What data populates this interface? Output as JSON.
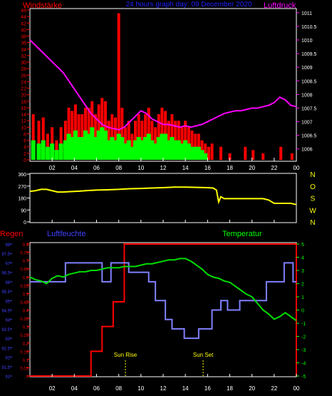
{
  "header": {
    "left_label": "Windstärke",
    "center_label": "24 hours graph day: 09 December 2020",
    "right_label": "Luftdruck"
  },
  "colors": {
    "frame": "#ffffff",
    "wind_avg": "#00ff00",
    "wind_gust": "#ff0000",
    "pressure": "#ff00ff",
    "direction": "#ffff00",
    "humidity": "#8080ff",
    "temperature": "#00dd00",
    "rain": "#ff0000",
    "label_yellow": "#ffff00",
    "axis_red": "#ff0000",
    "axis_blue": "#4040ff",
    "axis_green": "#00ff00",
    "axis_magenta": "#ff00ff",
    "axis_white": "#ffffff",
    "center_blue": "#2020ff"
  },
  "x_ticks": [
    "02",
    "04",
    "06",
    "08",
    "10",
    "12",
    "14",
    "16",
    "18",
    "20",
    "22",
    "00"
  ],
  "x_tick_hours": [
    2,
    4,
    6,
    8,
    10,
    12,
    14,
    16,
    18,
    20,
    22,
    24
  ],
  "chart_data": [
    {
      "type": "bar",
      "title": "Windstärke / Luftdruck",
      "xlabel": "",
      "x_range": [
        0,
        24
      ],
      "left_axis": {
        "label": "Windstärke",
        "ticks": [
          "0",
          "2",
          "4",
          "6",
          "8",
          "10",
          "12",
          "14",
          "16",
          "18",
          "20",
          "22",
          "24",
          "26",
          "28",
          "30",
          "32",
          "34",
          "36",
          "38",
          "40",
          "42",
          "44",
          "46"
        ],
        "ylim": [
          0,
          46
        ]
      },
      "right_axis": {
        "label": "Luftdruck",
        "ticks": [
          "1006",
          "1006.5",
          "1007",
          "1007.5",
          "1008",
          "1008.5",
          "1009",
          "1009.5",
          "1010",
          "1010.5",
          "1011"
        ],
        "ylim": [
          1005.6,
          1011.1
        ]
      },
      "series": [
        {
          "name": "Windstärke Böen",
          "style": "bars",
          "x": [
            0.3,
            0.8,
            1.2,
            1.6,
            2.0,
            2.4,
            2.8,
            3.2,
            3.5,
            3.8,
            4.1,
            4.4,
            4.7,
            5.0,
            5.3,
            5.6,
            5.9,
            6.2,
            6.5,
            6.8,
            7.1,
            7.4,
            7.7,
            8.0,
            8.3,
            8.6,
            8.9,
            9.2,
            9.5,
            9.8,
            10.1,
            10.4,
            10.7,
            11.0,
            11.3,
            11.6,
            11.9,
            12.2,
            12.5,
            12.8,
            13.1,
            13.4,
            13.7,
            14.0,
            14.3,
            14.6,
            14.9,
            15.2,
            15.5,
            15.8,
            16.1,
            16.4,
            17.2,
            18.0,
            19.4,
            20.1,
            21.0,
            22.6,
            23.6
          ],
          "values": [
            14,
            12,
            13,
            8,
            10,
            6,
            10,
            12,
            16,
            15,
            17,
            14,
            14,
            16,
            16,
            18,
            14,
            17,
            19,
            18,
            12,
            14,
            13,
            45,
            16,
            10,
            12,
            8,
            12,
            14,
            12,
            14,
            16,
            12,
            10,
            14,
            16,
            15,
            12,
            14,
            12,
            12,
            10,
            12,
            10,
            9,
            8,
            8,
            6,
            5,
            4,
            5,
            4,
            2,
            4,
            3,
            2,
            4,
            2
          ]
        },
        {
          "name": "Windstärke Mittel",
          "style": "bars",
          "x": [
            0.3,
            0.8,
            1.2,
            1.6,
            2.0,
            2.4,
            2.8,
            3.2,
            3.5,
            3.8,
            4.1,
            4.4,
            4.7,
            5.0,
            5.3,
            5.6,
            5.9,
            6.2,
            6.5,
            6.8,
            7.1,
            7.4,
            7.7,
            8.0,
            8.3,
            8.6,
            8.9,
            9.2,
            9.5,
            9.8,
            10.1,
            10.4,
            10.7,
            11.0,
            11.3,
            11.6,
            11.9,
            12.2,
            12.5,
            12.8,
            13.1,
            13.4,
            13.7,
            14.0,
            14.3,
            14.6,
            14.9,
            15.2,
            15.5,
            15.8
          ],
          "values": [
            6,
            5,
            6,
            4,
            5,
            3,
            5,
            6,
            8,
            7,
            9,
            7,
            7,
            9,
            8,
            10,
            7,
            9,
            10,
            9,
            6,
            7,
            6,
            8,
            7,
            5,
            6,
            4,
            6,
            7,
            6,
            7,
            8,
            6,
            5,
            7,
            8,
            8,
            6,
            7,
            6,
            6,
            5,
            6,
            5,
            4,
            4,
            4,
            3,
            2
          ]
        },
        {
          "name": "Luftdruck",
          "style": "line",
          "axis": "right",
          "x": [
            0,
            0.5,
            1,
            1.5,
            2,
            2.5,
            3,
            3.5,
            4,
            4.5,
            5,
            5.5,
            6,
            6.5,
            7,
            7.5,
            8,
            8.5,
            9,
            9.5,
            10,
            10.5,
            11,
            11.5,
            12,
            12.5,
            13,
            13.5,
            14,
            14.5,
            15,
            15.5,
            16,
            16.5,
            17,
            17.5,
            18,
            18.5,
            19,
            19.5,
            20,
            20.5,
            21,
            21.5,
            22,
            22.5,
            23,
            23.5,
            24
          ],
          "values": [
            1010,
            1009.8,
            1009.6,
            1009.4,
            1009.2,
            1009.0,
            1008.8,
            1008.5,
            1008.2,
            1007.9,
            1007.6,
            1007.3,
            1007.1,
            1006.9,
            1006.8,
            1006.75,
            1006.7,
            1006.8,
            1007.0,
            1007.2,
            1007.4,
            1007.3,
            1007.1,
            1007.0,
            1006.9,
            1006.9,
            1006.85,
            1006.8,
            1006.85,
            1006.8,
            1006.85,
            1006.9,
            1007.0,
            1007.1,
            1007.2,
            1007.3,
            1007.35,
            1007.4,
            1007.4,
            1007.45,
            1007.5,
            1007.5,
            1007.55,
            1007.6,
            1007.7,
            1007.9,
            1007.8,
            1007.6,
            1007.55
          ]
        }
      ]
    },
    {
      "type": "line",
      "title": "Windrichtung",
      "x_range": [
        0,
        24
      ],
      "left_axis": {
        "ticks": [
          "0",
          "90",
          "180",
          "270",
          "360"
        ],
        "ylim": [
          0,
          360
        ]
      },
      "right_axis": {
        "ticks": [
          "N",
          "W",
          "S",
          "O",
          "N"
        ]
      },
      "series": [
        {
          "name": "Windrichtung",
          "x": [
            0,
            0.5,
            1,
            1.5,
            2,
            2.5,
            3,
            3.5,
            4,
            4.5,
            5,
            6,
            7,
            8,
            9,
            10,
            11,
            12,
            13,
            14,
            15,
            16,
            16.5,
            16.8,
            17,
            17.2,
            17.5,
            18,
            19,
            20,
            20.5,
            21,
            21.5,
            22,
            22.5,
            23,
            23.5,
            24
          ],
          "values": [
            230,
            235,
            245,
            245,
            235,
            225,
            225,
            228,
            230,
            232,
            235,
            240,
            242,
            245,
            250,
            252,
            255,
            258,
            262,
            262,
            260,
            258,
            255,
            240,
            150,
            190,
            175,
            175,
            175,
            175,
            175,
            175,
            165,
            140,
            140,
            140,
            140,
            130
          ]
        }
      ]
    },
    {
      "type": "line",
      "title": "Regen / Luftfeuchte / Temperatur",
      "x_range": [
        0,
        24
      ],
      "left_axis_1": {
        "label": "Regen",
        "ticks": [
          "0",
          "0.05",
          "0.1",
          "0.15",
          "0.2",
          "0.25",
          "0.3",
          "0.35",
          "0.4",
          "0.45",
          "0.5",
          "0.55",
          "0.6",
          "0.65",
          "0.7",
          "0.75",
          "0.8"
        ],
        "ylim": [
          0,
          0.8
        ]
      },
      "left_axis_2": {
        "label": "Luftfeuchte",
        "ticks": [
          "91",
          "91.5",
          "92",
          "92.5",
          "93",
          "93.5",
          "94",
          "94.5",
          "95",
          "95.5",
          "96",
          "96.5",
          "97",
          "97.5",
          "98"
        ],
        "ylim": [
          91,
          98
        ]
      },
      "right_axis": {
        "label": "Temperatur",
        "ticks": [
          "-5",
          "-4",
          "-3",
          "-2",
          "-1",
          "0",
          "1",
          "2",
          "3",
          "4",
          "5"
        ],
        "ylim": [
          -5,
          5
        ]
      },
      "annotations": [
        {
          "label": "Sun Rise",
          "x": 8.6
        },
        {
          "label": "Sun Set",
          "x": 15.6
        }
      ],
      "series": [
        {
          "name": "Regen",
          "style": "step",
          "x": [
            0,
            5.5,
            5.5,
            6.5,
            6.5,
            7.5,
            7.5,
            8.5,
            8.5,
            24,
            24
          ],
          "values": [
            0,
            0,
            0.15,
            0.15,
            0.3,
            0.3,
            0.45,
            0.45,
            0.8,
            0.8,
            0
          ]
        },
        {
          "name": "Luftfeuchte",
          "style": "step",
          "x": [
            0,
            3.2,
            3.2,
            6.5,
            6.5,
            7.3,
            7.3,
            8.9,
            8.9,
            10.7,
            10.7,
            11.3,
            11.3,
            12.2,
            12.2,
            12.8,
            12.8,
            13.9,
            13.9,
            15.2,
            15.2,
            16.4,
            16.4,
            17.2,
            17.2,
            17.8,
            17.8,
            18.9,
            18.9,
            21.3,
            21.3,
            22.9,
            22.9,
            23.7,
            23.7,
            24
          ],
          "values": [
            96,
            96,
            97,
            97,
            96,
            96,
            97,
            97,
            96.5,
            96.5,
            96,
            96,
            95,
            95,
            94,
            94,
            93.5,
            93.5,
            93,
            93,
            93.5,
            93.5,
            94.5,
            94.5,
            95,
            95,
            94.5,
            94.5,
            95,
            95,
            96,
            96,
            97,
            97,
            96,
            96
          ]
        },
        {
          "name": "Temperatur",
          "style": "line",
          "x": [
            0,
            0.5,
            1,
            1.5,
            2,
            2.5,
            3,
            3.5,
            4,
            4.5,
            5,
            5.5,
            6,
            6.5,
            7,
            7.5,
            8,
            8.5,
            9,
            9.5,
            10,
            10.5,
            11,
            11.5,
            12,
            12.5,
            13,
            13.5,
            14,
            14.5,
            15,
            15.5,
            16,
            16.5,
            17,
            17.5,
            18,
            18.5,
            19,
            19.5,
            20,
            20.5,
            21,
            21.5,
            22,
            22.5,
            23,
            23.5,
            24
          ],
          "values": [
            2.5,
            2.3,
            2.2,
            2.0,
            2.4,
            2.6,
            2.5,
            2.7,
            2.8,
            2.9,
            2.9,
            3.0,
            3.0,
            3.1,
            3.2,
            3.2,
            3.2,
            3.3,
            3.3,
            3.3,
            3.4,
            3.5,
            3.5,
            3.6,
            3.7,
            3.8,
            3.8,
            3.9,
            3.9,
            3.7,
            3.4,
            3.1,
            2.7,
            2.5,
            2.4,
            2.2,
            2.1,
            1.8,
            1.5,
            1.2,
            1.0,
            0.5,
            0.0,
            -0.3,
            -0.7,
            -0.5,
            -0.2,
            -0.5,
            -0.8
          ]
        }
      ]
    }
  ]
}
